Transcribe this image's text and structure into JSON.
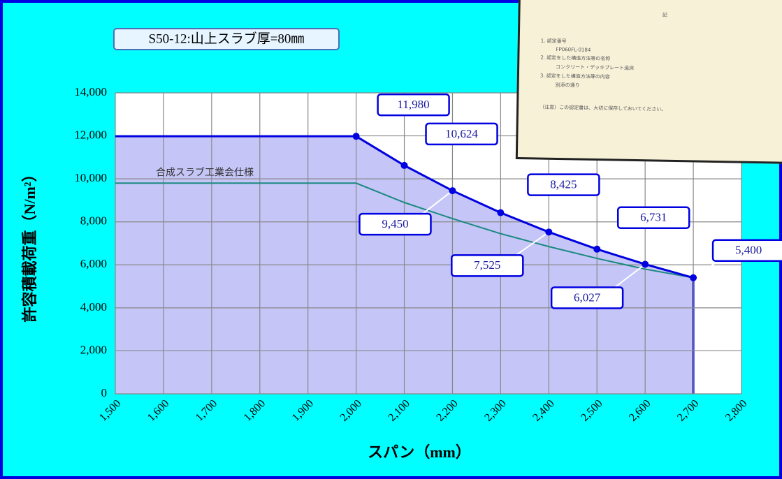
{
  "chart_data": {
    "type": "line",
    "title": "S50-12:山上スラブ厚=80㎜",
    "x_label": "スパン（mm）",
    "y_label": "許容積載荷重（N/m²）",
    "x": [
      1500,
      2000,
      2100,
      2200,
      2300,
      2400,
      2500,
      2600,
      2700
    ],
    "series": [
      {
        "name": "許容積載荷重",
        "color": "#0000e0",
        "fill": "#bbbbf7",
        "values": [
          11980,
          11980,
          10624,
          9450,
          8425,
          7525,
          6731,
          6027,
          5400
        ],
        "value_labels": [
          null,
          "11,980",
          "10,624",
          "9,450",
          "8,425",
          "7,525",
          "6,731",
          "6,027",
          "5,400"
        ]
      },
      {
        "name": "合成スラブ工業会仕様",
        "color": "#1a8a80",
        "values": [
          9800,
          9800,
          8900,
          8150,
          7450,
          6850,
          6300,
          5800,
          5400
        ]
      }
    ],
    "xlim": [
      1500,
      2800
    ],
    "xticks": [
      {
        "value": 1500,
        "label": "1,500"
      },
      {
        "value": 1600,
        "label": "1,600"
      },
      {
        "value": 1700,
        "label": "1,700"
      },
      {
        "value": 1800,
        "label": "1,800"
      },
      {
        "value": 1900,
        "label": "1,900"
      },
      {
        "value": 2000,
        "label": "2,000"
      },
      {
        "value": 2100,
        "label": "2,100"
      },
      {
        "value": 2200,
        "label": "2,200"
      },
      {
        "value": 2300,
        "label": "2,300"
      },
      {
        "value": 2400,
        "label": "2,400"
      },
      {
        "value": 2500,
        "label": "2,500"
      },
      {
        "value": 2600,
        "label": "2,600"
      },
      {
        "value": 2700,
        "label": "2,700"
      },
      {
        "value": 2800,
        "label": "2,800"
      }
    ],
    "ylim": [
      0,
      14000
    ],
    "yticks": [
      0,
      {
        "value": 2000,
        "label": "2,000"
      },
      {
        "value": 4000,
        "label": "4,000"
      },
      {
        "value": 6000,
        "label": "6,000"
      },
      {
        "value": 8000,
        "label": "8,000"
      },
      {
        "value": 10000,
        "label": "10,000"
      },
      {
        "value": 12000,
        "label": "12,000"
      },
      {
        "value": 14000,
        "label": "14,000"
      }
    ],
    "grid": true
  },
  "inset": {
    "heading": "記",
    "items": [
      "1. 認定番号",
      "FP060FL-0184",
      "2. 認定をした構造方法等の名称",
      "コンクリート・デッキプレート造床",
      "3. 認定をした構造方法等の内容",
      "別添の通り"
    ],
    "note": "（注意）この認定書は、大切に保存しておいてください。"
  }
}
